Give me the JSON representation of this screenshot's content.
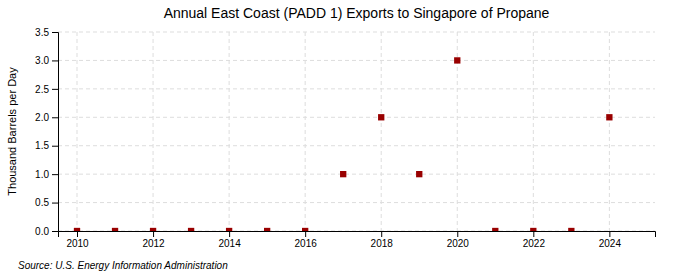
{
  "chart_data": {
    "type": "scatter",
    "title": "Annual East Coast (PADD 1) Exports to Singapore of Propane",
    "ylabel": "Thousand Barrels per Day",
    "source": "Source: U.S. Energy Information Administration",
    "x": [
      2010,
      2011,
      2012,
      2013,
      2014,
      2015,
      2016,
      2017,
      2018,
      2019,
      2020,
      2021,
      2022,
      2023,
      2024
    ],
    "values": [
      0.0,
      0.0,
      0.0,
      0.0,
      0.0,
      0.0,
      0.0,
      1.0,
      2.0,
      1.0,
      3.0,
      0.0,
      0.0,
      0.0,
      2.0
    ],
    "color": "#990000",
    "marker": "square",
    "xlim": [
      2009.5,
      2025.2
    ],
    "ylim": [
      0.0,
      3.5
    ],
    "xticks": [
      2010,
      2012,
      2014,
      2016,
      2018,
      2020,
      2022,
      2024
    ],
    "yticks": [
      {
        "value": 0.0,
        "label": "0.0"
      },
      {
        "value": 0.5,
        "label": "0.5"
      },
      {
        "value": 1.0,
        "label": "1.0"
      },
      {
        "value": 1.5,
        "label": "1.5"
      },
      {
        "value": 2.0,
        "label": "2.0"
      },
      {
        "value": 2.5,
        "label": "2.5"
      },
      {
        "value": 3.0,
        "label": "3.0"
      },
      {
        "value": 3.5,
        "label": "3.5"
      }
    ],
    "grid": true
  }
}
